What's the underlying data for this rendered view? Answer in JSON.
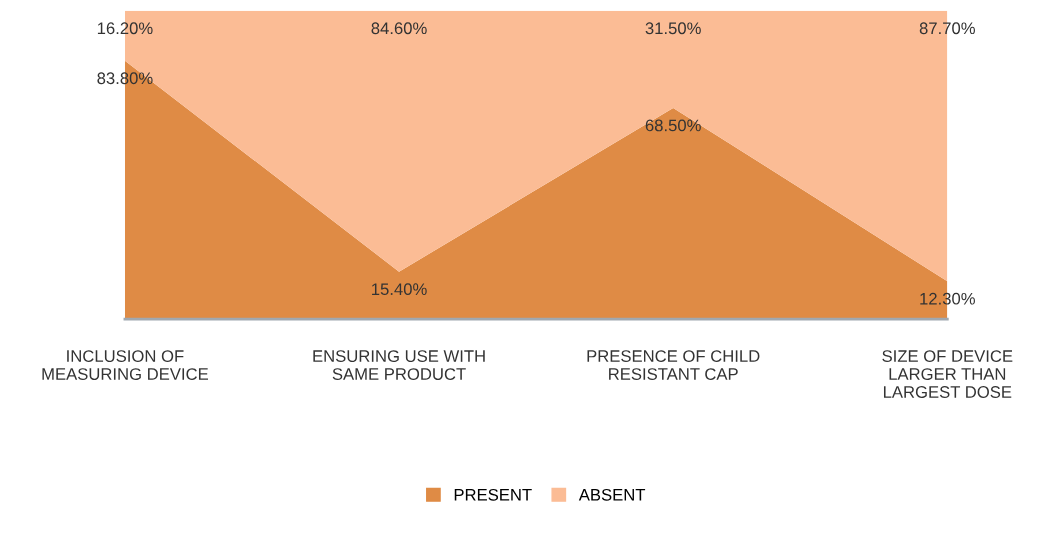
{
  "chart_data": {
    "type": "area",
    "stacked": true,
    "categories": [
      "INCLUSION OF\nMEASURING DEVICE",
      "ENSURING USE WITH\nSAME PRODUCT",
      "PRESENCE OF CHILD\nRESISTANT CAP",
      "SIZE OF DEVICE\nLARGER THAN\nLARGEST DOSE"
    ],
    "series": [
      {
        "name": "PRESENT",
        "color": "#df8b45",
        "values": [
          83.8,
          15.4,
          68.5,
          12.3
        ],
        "value_labels": [
          "83.80%",
          "15.40%",
          "68.50%",
          "12.30%"
        ]
      },
      {
        "name": "ABSENT",
        "color": "#fbbc95",
        "values": [
          16.2,
          84.6,
          31.5,
          87.7
        ],
        "value_labels": [
          "16.20%",
          "84.60%",
          "31.50%",
          "87.70%"
        ]
      }
    ],
    "tick_labels": "x",
    "legend": "bottom",
    "grid": false
  }
}
